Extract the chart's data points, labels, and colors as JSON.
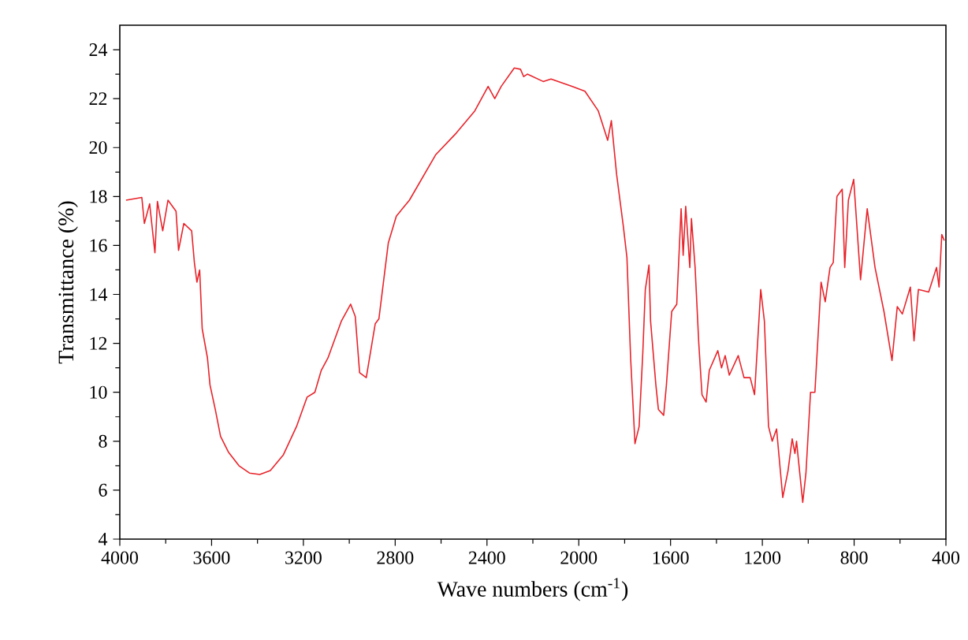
{
  "chart_data": {
    "type": "line",
    "xlabel": "Wave numbers (cm$^{-1}$)",
    "ylabel": "Transmittance (%)",
    "xlim": [
      4000,
      400
    ],
    "ylim": [
      4,
      25
    ],
    "xticks": [
      4000,
      3600,
      3200,
      2800,
      2400,
      2000,
      1600,
      1200,
      800,
      400
    ],
    "yticks": [
      4,
      6,
      8,
      10,
      12,
      14,
      16,
      18,
      20,
      22,
      24
    ],
    "marker": "none",
    "line_style": "solid",
    "series": [
      {
        "color": "#e8232a",
        "x": [
          3973,
          3904,
          3893,
          3870,
          3847,
          3836,
          3813,
          3790,
          3755,
          3744,
          3721,
          3687,
          3675,
          3664,
          3652,
          3641,
          3618,
          3607,
          3584,
          3561,
          3527,
          3481,
          3435,
          3390,
          3344,
          3287,
          3230,
          3184,
          3150,
          3122,
          3093,
          3035,
          2994,
          2974,
          2955,
          2926,
          2887,
          2871,
          2830,
          2795,
          2738,
          2624,
          2533,
          2453,
          2395,
          2366,
          2338,
          2281,
          2254,
          2240,
          2224,
          2155,
          2121,
          2030,
          1973,
          1915,
          1874,
          1858,
          1835,
          1806,
          1790,
          1774,
          1755,
          1737,
          1721,
          1710,
          1694,
          1687,
          1664,
          1653,
          1630,
          1618,
          1595,
          1573,
          1554,
          1545,
          1534,
          1516,
          1509,
          1493,
          1477,
          1463,
          1445,
          1431,
          1394,
          1378,
          1362,
          1344,
          1305,
          1280,
          1253,
          1234,
          1207,
          1191,
          1173,
          1157,
          1138,
          1111,
          1088,
          1070,
          1058,
          1051,
          1024,
          1010,
          990,
          971,
          944,
          926,
          905,
          891,
          875,
          852,
          841,
          825,
          802,
          772,
          743,
          709,
          670,
          635,
          612,
          590,
          555,
          539,
          520,
          475,
          441,
          430,
          418,
          407
        ],
        "values": [
          17.85,
          17.96,
          16.9,
          17.7,
          15.7,
          17.8,
          16.6,
          17.85,
          17.4,
          15.8,
          16.9,
          16.6,
          15.3,
          14.5,
          15.0,
          12.6,
          11.4,
          10.3,
          9.3,
          8.2,
          7.56,
          7.0,
          6.7,
          6.64,
          6.8,
          7.45,
          8.6,
          9.8,
          10.0,
          10.9,
          11.4,
          12.9,
          13.6,
          13.1,
          10.8,
          10.6,
          12.8,
          13.0,
          16.1,
          17.2,
          17.85,
          19.7,
          20.6,
          21.5,
          22.5,
          22.0,
          22.5,
          23.25,
          23.2,
          22.9,
          23.0,
          22.7,
          22.8,
          22.5,
          22.3,
          21.5,
          20.3,
          21.1,
          18.9,
          16.8,
          15.5,
          11.4,
          7.9,
          8.6,
          11.6,
          14.2,
          15.2,
          12.9,
          10.3,
          9.3,
          9.06,
          10.3,
          13.3,
          13.6,
          17.5,
          15.6,
          17.6,
          15.1,
          17.1,
          15.1,
          12.0,
          9.9,
          9.6,
          10.9,
          11.7,
          11.0,
          11.5,
          10.7,
          11.5,
          10.6,
          10.6,
          9.9,
          14.2,
          12.9,
          8.6,
          8.0,
          8.5,
          5.7,
          6.8,
          8.1,
          7.5,
          8.0,
          5.5,
          6.7,
          10.0,
          10.0,
          14.5,
          13.7,
          15.1,
          15.3,
          18.0,
          18.3,
          15.1,
          17.85,
          18.7,
          14.6,
          17.5,
          15.1,
          13.3,
          11.3,
          13.5,
          13.2,
          14.3,
          12.1,
          14.2,
          14.1,
          15.1,
          14.3,
          16.45,
          16.2
        ]
      }
    ]
  }
}
